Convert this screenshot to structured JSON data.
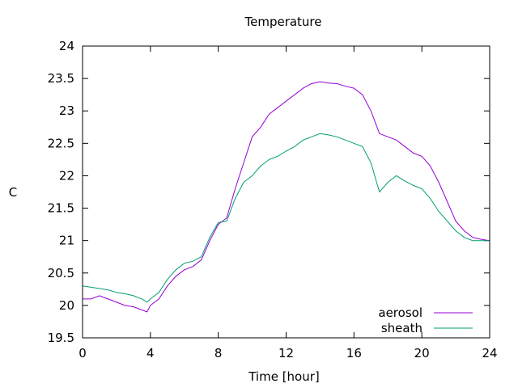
{
  "chart_data": {
    "type": "line",
    "title": "Temperature",
    "xlabel": "Time [hour]",
    "ylabel": "C",
    "xlim": [
      0,
      24
    ],
    "ylim": [
      19.5,
      24
    ],
    "xticks": [
      0,
      4,
      8,
      12,
      16,
      20,
      24
    ],
    "yticks": [
      19.5,
      20,
      20.5,
      21,
      21.5,
      22,
      22.5,
      23,
      23.5,
      24
    ],
    "xtick_labels": [
      "0",
      "4",
      "8",
      "12",
      "16",
      "20",
      "24"
    ],
    "ytick_labels": [
      "19.5",
      "20",
      "20.5",
      "21",
      "21.5",
      "22",
      "22.5",
      "23",
      "23.5",
      "24"
    ],
    "grid": false,
    "legend_position": "bottom-right",
    "series": [
      {
        "name": "aerosol",
        "color": "#9400d3",
        "x": [
          0,
          0.5,
          1,
          1.5,
          2,
          2.5,
          3,
          3.5,
          3.8,
          4,
          4.5,
          5,
          5.5,
          6,
          6.5,
          7,
          7.5,
          8,
          8.5,
          9,
          9.5,
          10,
          10.5,
          11,
          11.5,
          12,
          12.5,
          13,
          13.5,
          14,
          14.5,
          15,
          15.5,
          16,
          16.5,
          17,
          17.5,
          18,
          18.5,
          19,
          19.5,
          20,
          20.5,
          21,
          21.5,
          22,
          22.5,
          23,
          23.5,
          24
        ],
        "y": [
          20.1,
          20.1,
          20.15,
          20.1,
          20.05,
          20.0,
          19.98,
          19.93,
          19.9,
          20.0,
          20.1,
          20.3,
          20.45,
          20.55,
          20.6,
          20.7,
          21.0,
          21.25,
          21.35,
          21.8,
          22.2,
          22.6,
          22.75,
          22.95,
          23.05,
          23.15,
          23.25,
          23.35,
          23.42,
          23.45,
          23.43,
          23.42,
          23.38,
          23.35,
          23.25,
          23.0,
          22.65,
          22.6,
          22.55,
          22.45,
          22.35,
          22.3,
          22.15,
          21.9,
          21.6,
          21.3,
          21.15,
          21.05,
          21.02,
          21.0
        ]
      },
      {
        "name": "sheath",
        "color": "#009e73",
        "x": [
          0,
          0.5,
          1,
          1.5,
          2,
          2.5,
          3,
          3.5,
          3.8,
          4,
          4.5,
          5,
          5.5,
          6,
          6.5,
          7,
          7.5,
          8,
          8.5,
          9,
          9.5,
          10,
          10.5,
          11,
          11.5,
          12,
          12.5,
          13,
          13.5,
          14,
          14.5,
          15,
          15.5,
          16,
          16.5,
          17,
          17.5,
          18,
          18.5,
          19,
          19.5,
          20,
          20.5,
          21,
          21.5,
          22,
          22.5,
          23,
          23.5,
          24
        ],
        "y": [
          20.3,
          20.28,
          20.26,
          20.24,
          20.2,
          20.18,
          20.15,
          20.1,
          20.05,
          20.1,
          20.2,
          20.4,
          20.55,
          20.65,
          20.68,
          20.75,
          21.05,
          21.28,
          21.3,
          21.65,
          21.9,
          22.0,
          22.15,
          22.25,
          22.3,
          22.38,
          22.45,
          22.55,
          22.6,
          22.65,
          22.63,
          22.6,
          22.55,
          22.5,
          22.45,
          22.2,
          21.75,
          21.9,
          22.0,
          21.92,
          21.85,
          21.8,
          21.65,
          21.45,
          21.3,
          21.15,
          21.05,
          21.0,
          21.0,
          21.0
        ]
      }
    ]
  }
}
